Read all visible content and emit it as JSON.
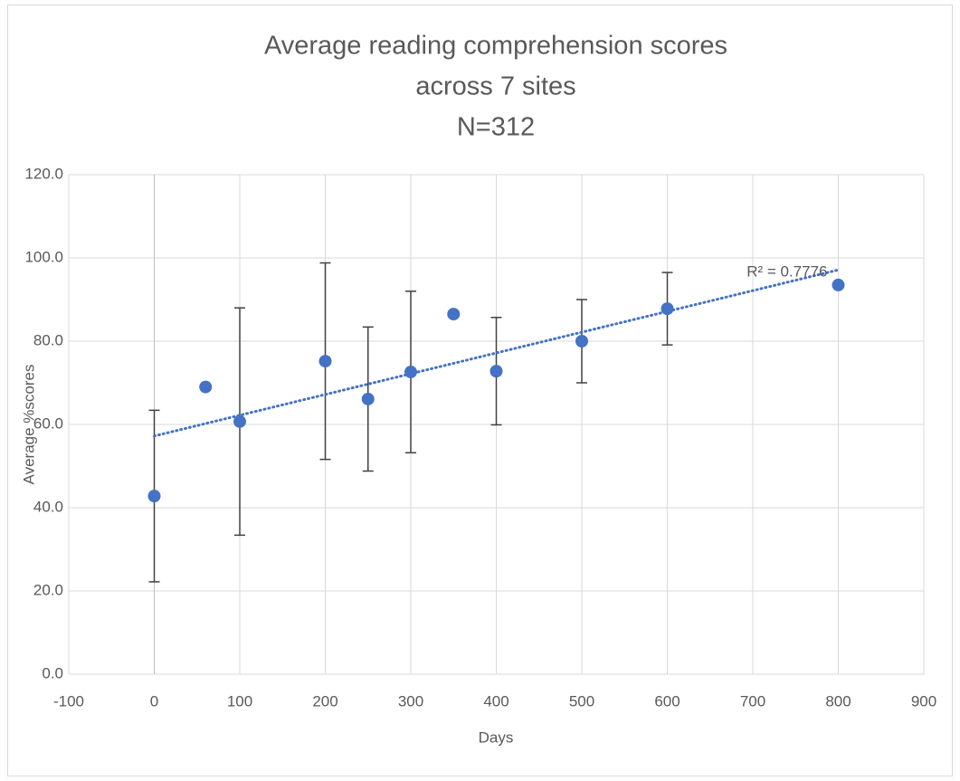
{
  "chart_data": {
    "type": "scatter",
    "title": [
      "Average reading comprehension scores",
      "across 7 sites",
      "N=312"
    ],
    "x_label": "Days",
    "y_label": "Average %scores",
    "x": [
      0,
      60,
      100,
      200,
      250,
      300,
      350,
      400,
      500,
      600,
      800
    ],
    "series": [
      {
        "color": "#4472c4",
        "values": [
          42.8,
          69.0,
          60.7,
          75.2,
          66.1,
          72.6,
          86.5,
          72.8,
          80.0,
          87.8,
          93.5
        ],
        "errors": [
          20.6,
          null,
          27.3,
          23.6,
          17.3,
          19.4,
          null,
          12.9,
          10.0,
          8.7,
          null
        ]
      }
    ],
    "error_color": "#404040",
    "trendline": {
      "type": "linear",
      "label": "R² = 0.7776",
      "color": "#4472c4"
    },
    "xlim": [
      -100,
      900
    ],
    "xticks": [
      -100,
      0,
      100,
      200,
      300,
      400,
      500,
      600,
      700,
      800,
      900
    ],
    "ylim": [
      0,
      120
    ],
    "yticks": [
      {
        "value": 0,
        "label": "0.0"
      },
      {
        "value": 20,
        "label": "20.0"
      },
      {
        "value": 40,
        "label": "40.0"
      },
      {
        "value": 60,
        "label": "60.0"
      },
      {
        "value": 80,
        "label": "80.0"
      },
      {
        "value": 100,
        "label": "100.0"
      },
      {
        "value": 120,
        "label": "120.0"
      }
    ],
    "grid": true
  }
}
